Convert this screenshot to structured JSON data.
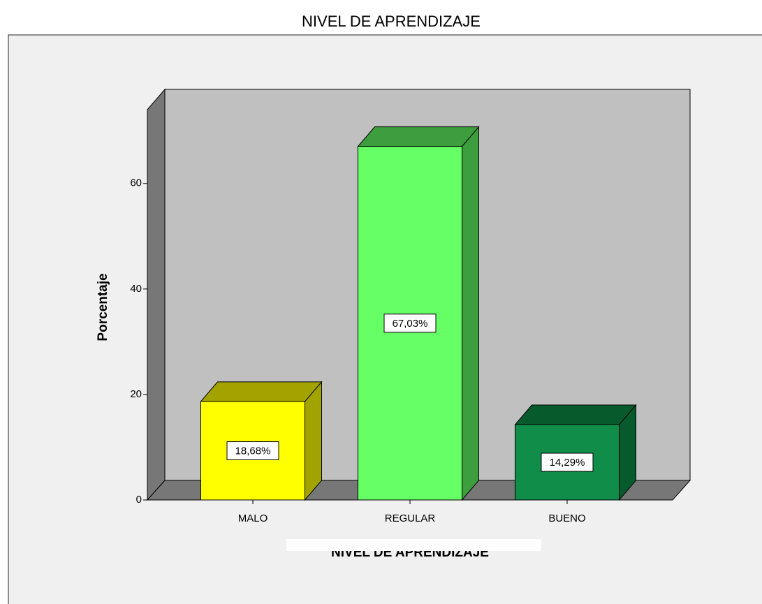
{
  "chart_data": {
    "type": "bar3d",
    "title": "NIVEL DE APRENDIZAJE",
    "y_label": "Porcentaje",
    "x_label": "NIVEL DE APRENDIZAJE",
    "categories": [
      "MALO",
      "REGULAR",
      "BUENO"
    ],
    "values": [
      18.68,
      67.03,
      14.29
    ],
    "value_labels": [
      "18,68%",
      "67,03%",
      "14,29%"
    ],
    "colors": [
      "#ffff00",
      "#66ff66",
      "#118d4a"
    ],
    "side_colors": [
      "#a3a300",
      "#3d9e3d",
      "#075a2c"
    ],
    "ylim": [
      0,
      74
    ],
    "yticks": [
      0,
      20,
      40,
      60
    ]
  }
}
